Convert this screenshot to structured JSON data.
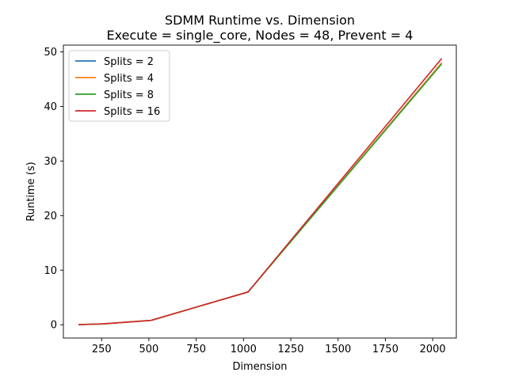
{
  "chart_data": {
    "type": "line",
    "title": "SDMM Runtime vs. Dimension",
    "subtitle": "Execute = single_core, Nodes = 48, Prevent = 4",
    "xlabel": "Dimension",
    "ylabel": "Runtime (s)",
    "xlim": [
      48,
      2125
    ],
    "ylim": [
      -2.44,
      51.24
    ],
    "xticks": [
      250,
      500,
      750,
      1000,
      1250,
      1500,
      1750,
      2000
    ],
    "yticks": [
      0,
      10,
      20,
      30,
      40,
      50
    ],
    "grid": false,
    "legend_position": "top-left",
    "x": [
      128,
      256,
      512,
      1024,
      2048
    ],
    "series": [
      {
        "name": "Splits = 2",
        "color": "#1f77b4",
        "values": [
          0.02,
          0.15,
          0.8,
          6.0,
          48.0
        ]
      },
      {
        "name": "Splits = 4",
        "color": "#ff7f0e",
        "values": [
          0.02,
          0.15,
          0.8,
          6.0,
          48.0
        ]
      },
      {
        "name": "Splits = 8",
        "color": "#2ca02c",
        "values": [
          0.02,
          0.15,
          0.8,
          6.0,
          47.8
        ]
      },
      {
        "name": "Splits = 16",
        "color": "#d62728",
        "values": [
          0.02,
          0.16,
          0.8,
          6.0,
          48.8
        ]
      }
    ]
  }
}
